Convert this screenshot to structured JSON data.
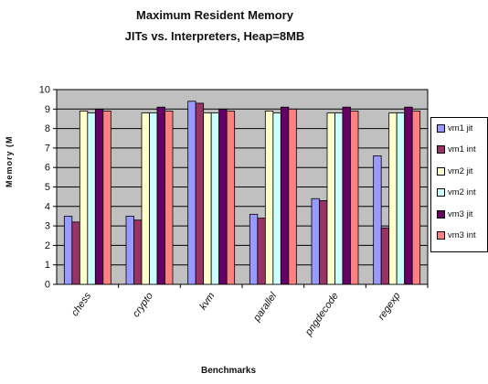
{
  "chart_data": {
    "type": "bar",
    "title": "Maximum Resident Memory",
    "subtitle": "JITs vs. Interpreters, Heap=8MB",
    "xlabel": "Benchmarks",
    "ylabel": "Memory (M",
    "ylim": [
      0,
      10
    ],
    "yticks": [
      "0",
      "1",
      "2",
      "3",
      "4",
      "5",
      "6",
      "7",
      "8",
      "9",
      "10"
    ],
    "grid": true,
    "legend_position": "right",
    "categories": [
      "chess",
      "crypto",
      "kvm",
      "parallel",
      "pngdecode",
      "regexp"
    ],
    "series": [
      {
        "name": "vm1 jit",
        "color": "#9999ff",
        "values": [
          3.5,
          3.5,
          9.4,
          3.6,
          4.4,
          6.6
        ]
      },
      {
        "name": "vm1 int",
        "color": "#993366",
        "values": [
          3.2,
          3.3,
          9.3,
          3.4,
          4.3,
          2.9
        ]
      },
      {
        "name": "vm2 jit",
        "color": "#ffffcc",
        "values": [
          8.9,
          8.8,
          8.8,
          8.9,
          8.8,
          8.8
        ]
      },
      {
        "name": "vm2 int",
        "color": "#ccffff",
        "values": [
          8.8,
          8.8,
          8.8,
          8.8,
          8.8,
          8.8
        ]
      },
      {
        "name": "vm3 jit",
        "color": "#660066",
        "values": [
          9.0,
          9.1,
          9.0,
          9.1,
          9.1,
          9.1
        ]
      },
      {
        "name": "vm3 int",
        "color": "#ff8080",
        "values": [
          8.9,
          8.9,
          8.9,
          9.0,
          8.9,
          8.9
        ]
      }
    ],
    "plot_background": "#c0c0c0"
  }
}
